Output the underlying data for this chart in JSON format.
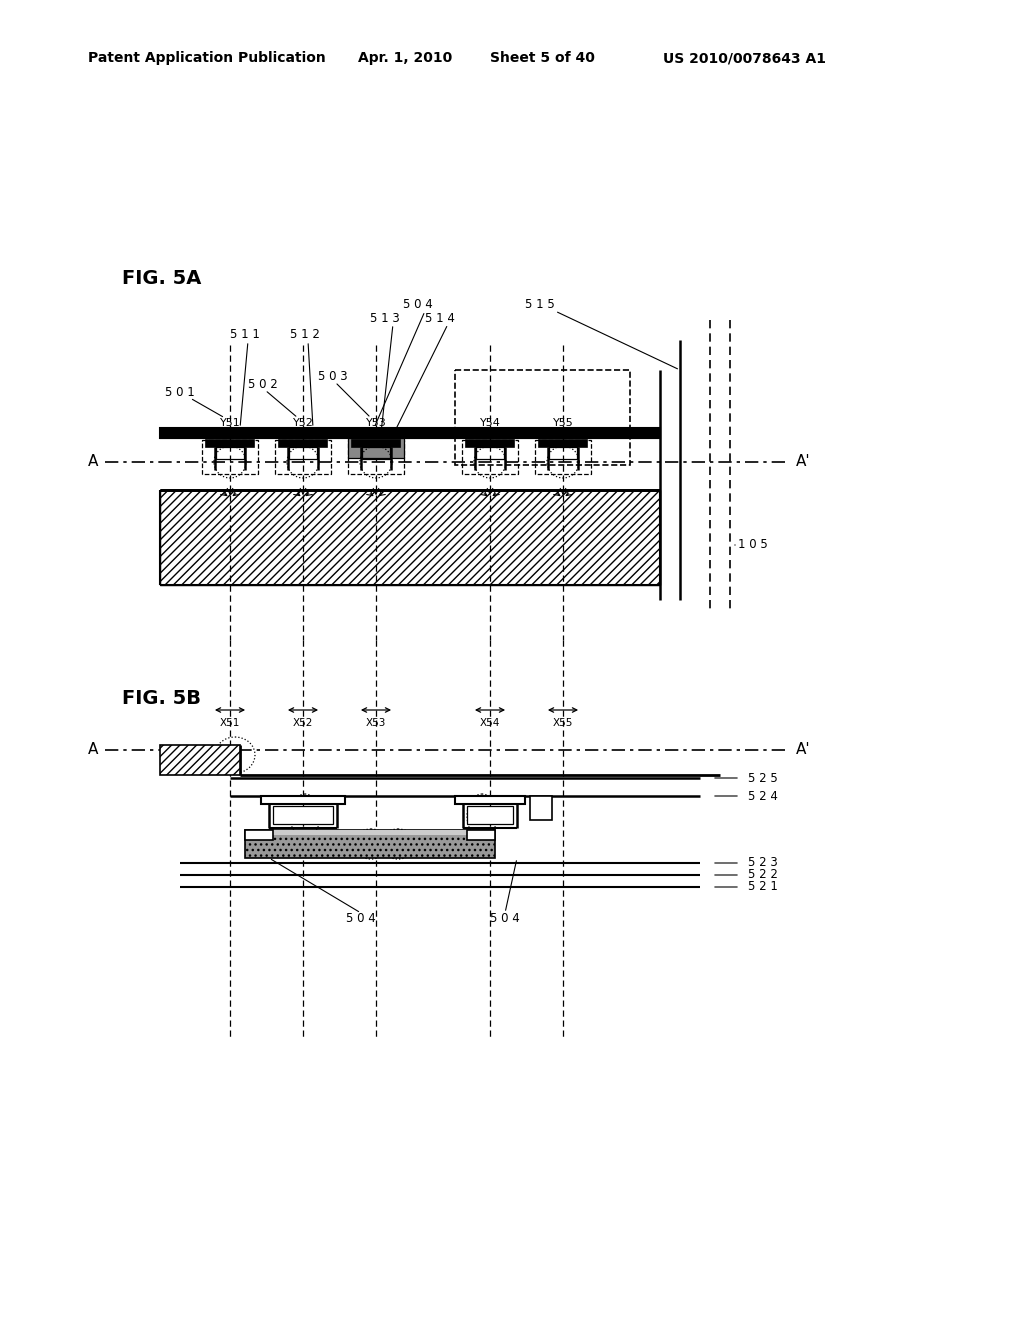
{
  "bg_color": "#ffffff",
  "header_text": "Patent Application Publication",
  "header_date": "Apr. 1, 2010",
  "header_sheet": "Sheet 5 of 40",
  "header_patent": "US 2010/0078643 A1",
  "fig5a_label": "FIG. 5A",
  "fig5b_label": "FIG. 5B"
}
